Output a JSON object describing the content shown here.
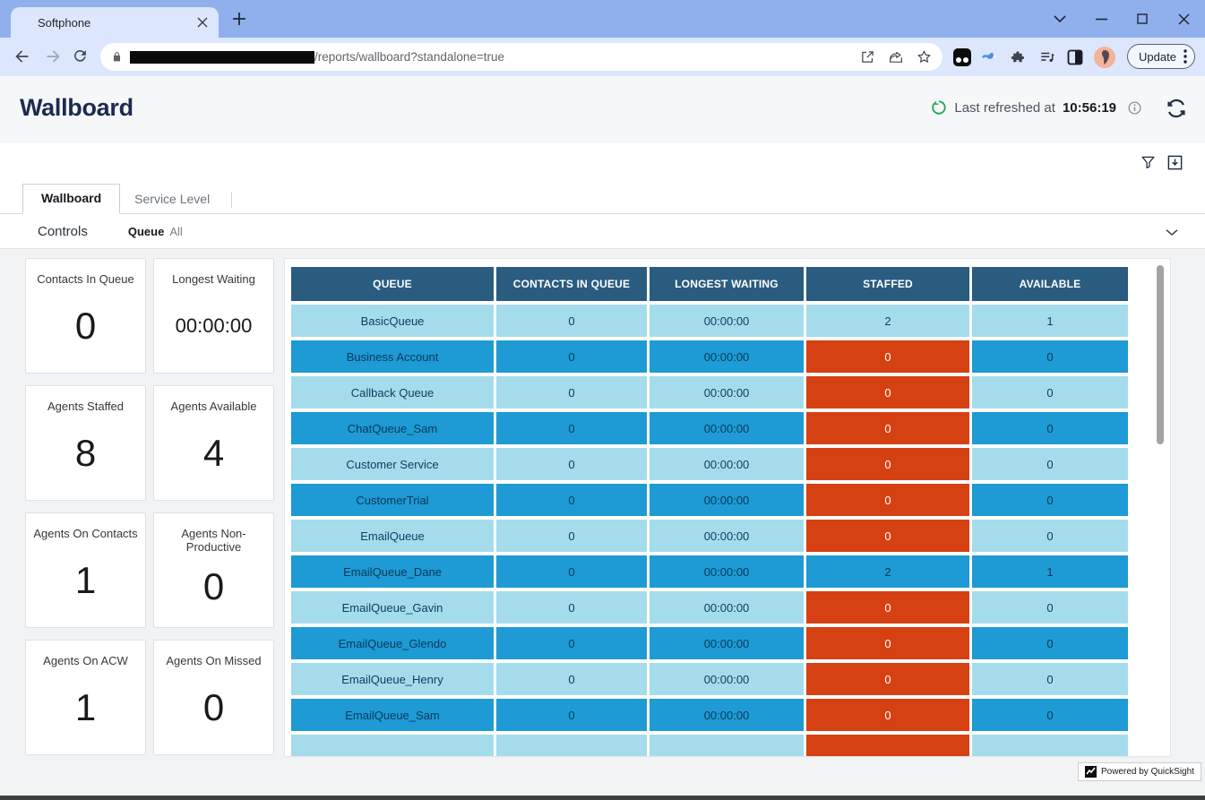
{
  "browser": {
    "tab_title": "Softphone",
    "url_path": "/reports/wallboard?standalone=true",
    "update_button": "Update"
  },
  "header": {
    "title": "Wallboard",
    "refreshed_label": "Last refreshed at",
    "refreshed_time": "10:56:19"
  },
  "dashboard": {
    "tabs": [
      {
        "label": "Wallboard",
        "active": true
      },
      {
        "label": "Service Level",
        "active": false
      }
    ],
    "controls": {
      "title": "Controls",
      "filter_label": "Queue",
      "filter_value": "All"
    },
    "kpis": [
      {
        "label": "Contacts In Queue",
        "value": "0",
        "small": false
      },
      {
        "label": "Longest Waiting",
        "value": "00:00:00",
        "small": true
      },
      {
        "label": "Agents Staffed",
        "value": "8",
        "small": false
      },
      {
        "label": "Agents Available",
        "value": "4",
        "small": false
      },
      {
        "label": "Agents On Contacts",
        "value": "1",
        "small": false
      },
      {
        "label": "Agents Non-Productive",
        "value": "0",
        "small": false
      },
      {
        "label": "Agents On ACW",
        "value": "1",
        "small": false
      },
      {
        "label": "Agents On Missed",
        "value": "0",
        "small": false
      }
    ],
    "table": {
      "columns": [
        "QUEUE",
        "CONTACTS IN QUEUE",
        "LONGEST WAITING",
        "STAFFED",
        "AVAILABLE"
      ],
      "rows": [
        {
          "queue": "BasicQueue",
          "contacts_in_queue": "0",
          "longest_waiting": "00:00:00",
          "staffed": "2",
          "available": "1",
          "shade": "light",
          "staffed_alert": false
        },
        {
          "queue": "Business Account",
          "contacts_in_queue": "0",
          "longest_waiting": "00:00:00",
          "staffed": "0",
          "available": "0",
          "shade": "dark",
          "staffed_alert": true
        },
        {
          "queue": "Callback Queue",
          "contacts_in_queue": "0",
          "longest_waiting": "00:00:00",
          "staffed": "0",
          "available": "0",
          "shade": "light",
          "staffed_alert": true
        },
        {
          "queue": "ChatQueue_Sam",
          "contacts_in_queue": "0",
          "longest_waiting": "00:00:00",
          "staffed": "0",
          "available": "0",
          "shade": "dark",
          "staffed_alert": true
        },
        {
          "queue": "Customer Service",
          "contacts_in_queue": "0",
          "longest_waiting": "00:00:00",
          "staffed": "0",
          "available": "0",
          "shade": "light",
          "staffed_alert": true
        },
        {
          "queue": "CustomerTrial",
          "contacts_in_queue": "0",
          "longest_waiting": "00:00:00",
          "staffed": "0",
          "available": "0",
          "shade": "dark",
          "staffed_alert": true
        },
        {
          "queue": "EmailQueue",
          "contacts_in_queue": "0",
          "longest_waiting": "00:00:00",
          "staffed": "0",
          "available": "0",
          "shade": "light",
          "staffed_alert": true
        },
        {
          "queue": "EmailQueue_Dane",
          "contacts_in_queue": "0",
          "longest_waiting": "00:00:00",
          "staffed": "2",
          "available": "1",
          "shade": "dark",
          "staffed_alert": false
        },
        {
          "queue": "EmailQueue_Gavin",
          "contacts_in_queue": "0",
          "longest_waiting": "00:00:00",
          "staffed": "0",
          "available": "0",
          "shade": "light",
          "staffed_alert": true
        },
        {
          "queue": "EmailQueue_Glendo",
          "contacts_in_queue": "0",
          "longest_waiting": "00:00:00",
          "staffed": "0",
          "available": "0",
          "shade": "dark",
          "staffed_alert": true
        },
        {
          "queue": "EmailQueue_Henry",
          "contacts_in_queue": "0",
          "longest_waiting": "00:00:00",
          "staffed": "0",
          "available": "0",
          "shade": "light",
          "staffed_alert": true
        },
        {
          "queue": "EmailQueue_Sam",
          "contacts_in_queue": "0",
          "longest_waiting": "00:00:00",
          "staffed": "0",
          "available": "0",
          "shade": "dark",
          "staffed_alert": true
        },
        {
          "queue": "",
          "contacts_in_queue": "",
          "longest_waiting": "",
          "staffed": "",
          "available": "",
          "shade": "light",
          "staffed_alert": true,
          "partial": true
        }
      ]
    },
    "powered_by": "Powered by QuickSight"
  },
  "colors": {
    "chrome_frame": "#8fb0ec",
    "chrome_toolbar": "#dce7fd",
    "table_header_bg": "#2a5c7f",
    "row_light": "#a5dcec",
    "row_dark": "#1e9ad4",
    "alert_orange": "#d64113",
    "title_navy": "#1c2b50",
    "refresh_green": "#21a453"
  }
}
